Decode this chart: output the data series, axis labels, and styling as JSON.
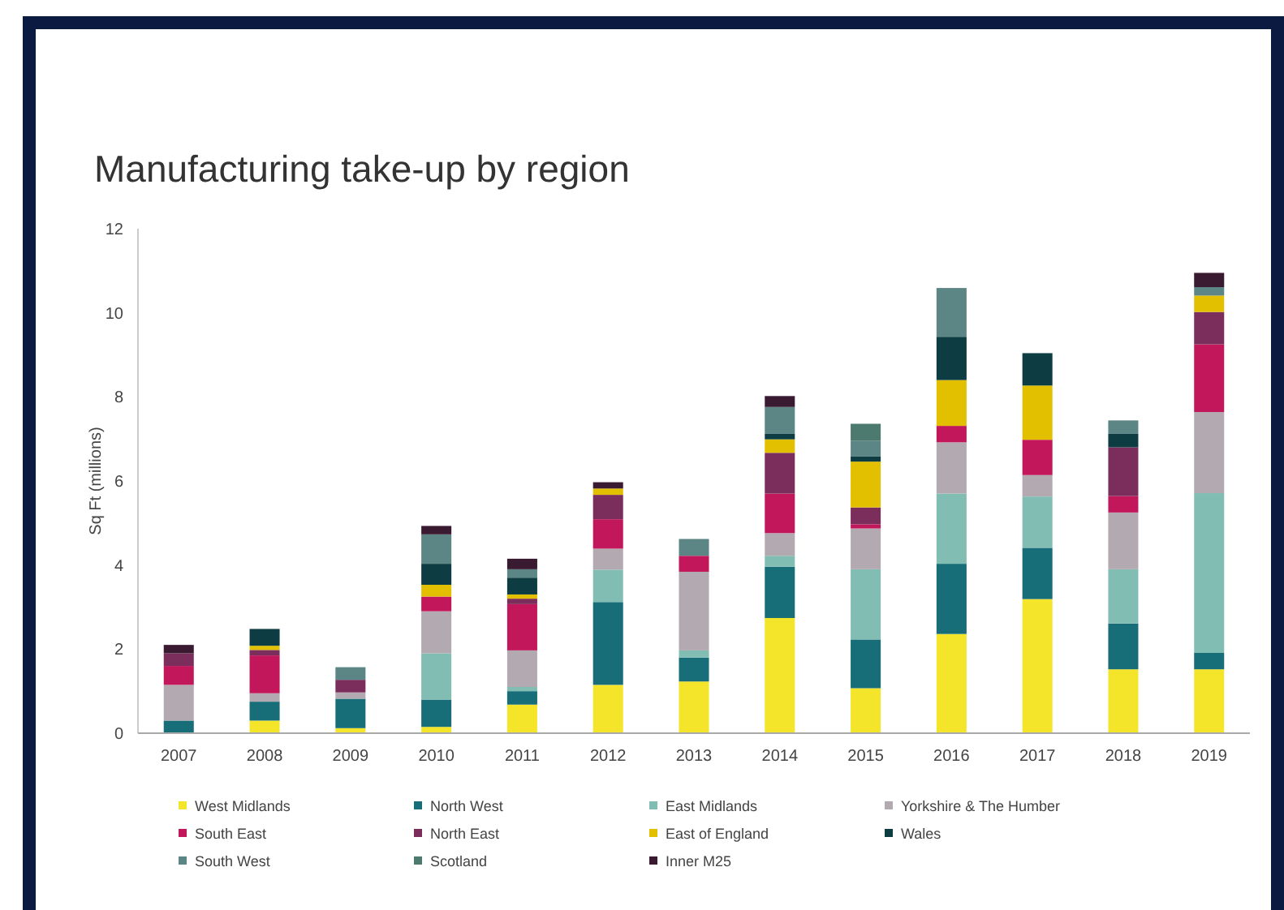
{
  "chart_data": {
    "type": "bar",
    "title": "Manufacturing take-up by region",
    "ylabel": "Sq Ft (millions)",
    "stacked": true,
    "legend": "bottom",
    "grid": false,
    "categories": [
      "2007",
      "2008",
      "2009",
      "2010",
      "2011",
      "2012",
      "2013",
      "2014",
      "2015",
      "2016",
      "2017",
      "2018",
      "2019"
    ],
    "ylim": [
      0,
      12
    ],
    "yticks": [
      0,
      2,
      4,
      6,
      8,
      10,
      12
    ],
    "series": [
      {
        "name": "West Midlands",
        "color": "#f5e52a",
        "values": [
          0,
          0.3,
          0.12,
          0.15,
          0.68,
          1.15,
          1.23,
          2.74,
          1.07,
          2.36,
          3.19,
          1.52,
          1.52
        ]
      },
      {
        "name": "North West",
        "color": "#176e78",
        "values": [
          0.3,
          0.45,
          0.7,
          0.65,
          0.32,
          1.97,
          0.57,
          1.22,
          1.16,
          1.67,
          1.22,
          1.09,
          0.39
        ]
      },
      {
        "name": "East Midlands",
        "color": "#82bdb3",
        "values": [
          0,
          0,
          0,
          1.1,
          0.1,
          0.77,
          0.17,
          0.26,
          1.67,
          1.67,
          1.22,
          1.29,
          3.8
        ]
      },
      {
        "name": "Yorkshire & The Humber",
        "color": "#b3a9b0",
        "values": [
          0.85,
          0.2,
          0.15,
          1.0,
          0.87,
          0.5,
          1.87,
          0.54,
          0.97,
          1.22,
          0.51,
          1.35,
          1.93
        ]
      },
      {
        "name": "South East",
        "color": "#c2185b",
        "values": [
          0.45,
          0.9,
          0,
          0.35,
          1.1,
          0.7,
          0.38,
          0.94,
          0.1,
          0.39,
          0.84,
          0.39,
          1.61
        ]
      },
      {
        "name": "North East",
        "color": "#7b2d5c",
        "values": [
          0.3,
          0.13,
          0.3,
          0,
          0.13,
          0.58,
          0,
          0.97,
          0.4,
          0,
          0,
          1.16,
          0.77
        ]
      },
      {
        "name": "East of England",
        "color": "#e2c000",
        "values": [
          0,
          0.1,
          0,
          0.28,
          0.1,
          0.15,
          0,
          0.32,
          1.09,
          1.09,
          1.29,
          0,
          0.39
        ]
      },
      {
        "name": "Wales",
        "color": "#0d3d42",
        "values": [
          0,
          0.4,
          0,
          0.5,
          0.4,
          0,
          0,
          0.13,
          0.13,
          1.03,
          0.77,
          0.32,
          0
        ]
      },
      {
        "name": "South West",
        "color": "#5c8585",
        "values": [
          0,
          0,
          0.3,
          0.7,
          0.2,
          0,
          0.4,
          0.64,
          0.37,
          1.16,
          0,
          0.32,
          0.2
        ]
      },
      {
        "name": "Scotland",
        "color": "#4d7a6e",
        "values": [
          0,
          0,
          0,
          0,
          0,
          0,
          0,
          0,
          0.4,
          0,
          0,
          0,
          0
        ]
      },
      {
        "name": "Inner M25",
        "color": "#3a1a30",
        "values": [
          0.2,
          0,
          0,
          0.2,
          0.25,
          0.15,
          0,
          0.26,
          0,
          0,
          0,
          0,
          0.34
        ]
      }
    ]
  }
}
